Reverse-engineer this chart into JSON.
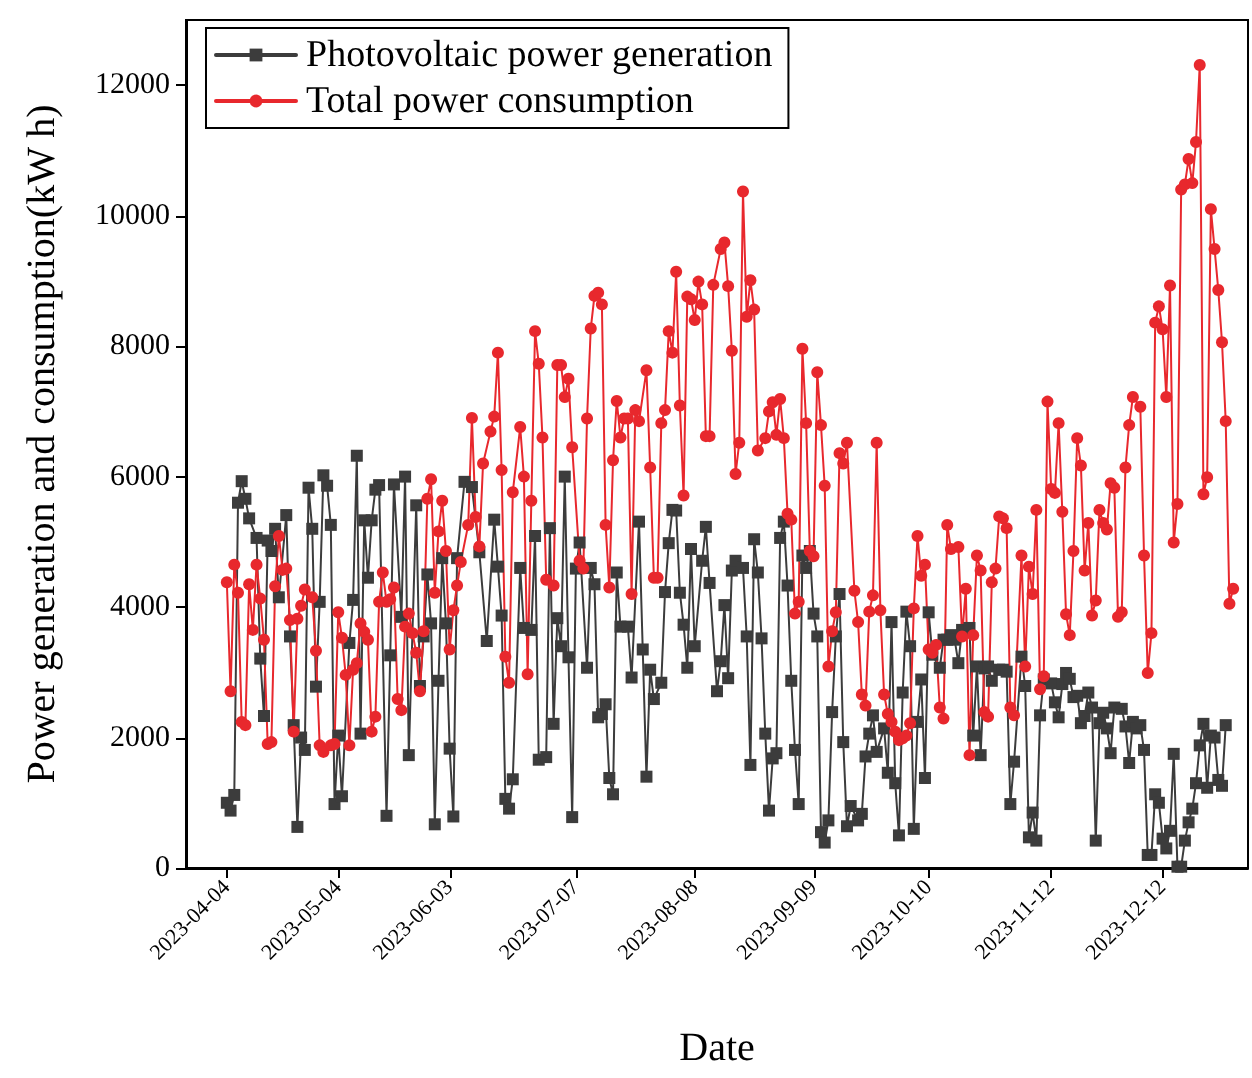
{
  "chart_data": {
    "type": "line",
    "xlabel": "Date",
    "ylabel": "Power generation and consumption(kW h)",
    "legend": "top left",
    "grid": false,
    "xlim": [
      "2023-03-24",
      "2024-01-04"
    ],
    "xticks": [
      "2023-04-04",
      "2023-05-04",
      "2023-06-03",
      "2023-07-07",
      "2023-08-08",
      "2023-09-09",
      "2023-10-10",
      "2023-11-12",
      "2023-12-12"
    ],
    "ylim": [
      0,
      13000
    ],
    "yticks": [
      0,
      2000,
      4000,
      6000,
      8000,
      10000,
      12000
    ],
    "series": [
      {
        "name": "Photovoltaic power generation",
        "color": "#3c3c3c",
        "marker": "square",
        "x": [
          "2023-04-04",
          "2023-04-05",
          "2023-04-06",
          "2023-04-07",
          "2023-04-08",
          "2023-04-09",
          "2023-04-10",
          "2023-04-12",
          "2023-04-13",
          "2023-04-14",
          "2023-04-15",
          "2023-04-16",
          "2023-04-17",
          "2023-04-18",
          "2023-04-20",
          "2023-04-21",
          "2023-04-22",
          "2023-04-23",
          "2023-04-24",
          "2023-04-25",
          "2023-04-26",
          "2023-04-27",
          "2023-04-28",
          "2023-04-29",
          "2023-04-30",
          "2023-05-01",
          "2023-05-02",
          "2023-05-03",
          "2023-05-04",
          "2023-05-05",
          "2023-05-07",
          "2023-05-08",
          "2023-05-09",
          "2023-05-10",
          "2023-05-11",
          "2023-05-12",
          "2023-05-13",
          "2023-05-14",
          "2023-05-15",
          "2023-05-17",
          "2023-05-18",
          "2023-05-19",
          "2023-05-21",
          "2023-05-22",
          "2023-05-23",
          "2023-05-25",
          "2023-05-26",
          "2023-05-27",
          "2023-05-28",
          "2023-05-29",
          "2023-05-30",
          "2023-05-31",
          "2023-06-01",
          "2023-06-02",
          "2023-06-03",
          "2023-06-04",
          "2023-06-05",
          "2023-06-07",
          "2023-06-09",
          "2023-06-11",
          "2023-06-13",
          "2023-06-15",
          "2023-06-16",
          "2023-06-17",
          "2023-06-18",
          "2023-06-19",
          "2023-06-20",
          "2023-06-22",
          "2023-06-23",
          "2023-06-25",
          "2023-06-26",
          "2023-06-27",
          "2023-06-29",
          "2023-06-30",
          "2023-07-01",
          "2023-07-02",
          "2023-07-03",
          "2023-07-04",
          "2023-07-05",
          "2023-07-06",
          "2023-07-07",
          "2023-07-08",
          "2023-07-10",
          "2023-07-11",
          "2023-07-12",
          "2023-07-13",
          "2023-07-14",
          "2023-07-15",
          "2023-07-16",
          "2023-07-17",
          "2023-07-18",
          "2023-07-19",
          "2023-07-21",
          "2023-07-22",
          "2023-07-24",
          "2023-07-25",
          "2023-07-26",
          "2023-07-27",
          "2023-07-28",
          "2023-07-30",
          "2023-07-31",
          "2023-08-01",
          "2023-08-02",
          "2023-08-03",
          "2023-08-04",
          "2023-08-05",
          "2023-08-06",
          "2023-08-07",
          "2023-08-08",
          "2023-08-10",
          "2023-08-11",
          "2023-08-12",
          "2023-08-14",
          "2023-08-15",
          "2023-08-16",
          "2023-08-17",
          "2023-08-18",
          "2023-08-19",
          "2023-08-21",
          "2023-08-22",
          "2023-08-23",
          "2023-08-24",
          "2023-08-25",
          "2023-08-26",
          "2023-08-27",
          "2023-08-28",
          "2023-08-29",
          "2023-08-30",
          "2023-08-31",
          "2023-09-01",
          "2023-09-02",
          "2023-09-03",
          "2023-09-04",
          "2023-09-05",
          "2023-09-06",
          "2023-09-07",
          "2023-09-08",
          "2023-09-09",
          "2023-09-10",
          "2023-09-11",
          "2023-09-12",
          "2023-09-13",
          "2023-09-14",
          "2023-09-15",
          "2023-09-16",
          "2023-09-17",
          "2023-09-18",
          "2023-09-19",
          "2023-09-21",
          "2023-09-22",
          "2023-09-23",
          "2023-09-24",
          "2023-09-25",
          "2023-09-26",
          "2023-09-28",
          "2023-09-29",
          "2023-09-30",
          "2023-10-01",
          "2023-10-02",
          "2023-10-03",
          "2023-10-04",
          "2023-10-05",
          "2023-10-06",
          "2023-10-07",
          "2023-10-08",
          "2023-10-09",
          "2023-10-10",
          "2023-10-11",
          "2023-10-13",
          "2023-10-14",
          "2023-10-15",
          "2023-10-16",
          "2023-10-17",
          "2023-10-18",
          "2023-10-19",
          "2023-10-21",
          "2023-10-22",
          "2023-10-23",
          "2023-10-24",
          "2023-10-25",
          "2023-10-26",
          "2023-10-27",
          "2023-10-29",
          "2023-10-30",
          "2023-10-31",
          "2023-11-01",
          "2023-11-02",
          "2023-11-04",
          "2023-11-05",
          "2023-11-06",
          "2023-11-07",
          "2023-11-08",
          "2023-11-09",
          "2023-11-10",
          "2023-11-12",
          "2023-11-13",
          "2023-11-14",
          "2023-11-15",
          "2023-11-16",
          "2023-11-17",
          "2023-11-18",
          "2023-11-19",
          "2023-11-20",
          "2023-11-21",
          "2023-11-22",
          "2023-11-23",
          "2023-11-24",
          "2023-11-25",
          "2023-11-26",
          "2023-11-27",
          "2023-11-28",
          "2023-11-29",
          "2023-12-01",
          "2023-12-02",
          "2023-12-03",
          "2023-12-04",
          "2023-12-05",
          "2023-12-06",
          "2023-12-07",
          "2023-12-08",
          "2023-12-09",
          "2023-12-10",
          "2023-12-11",
          "2023-12-12",
          "2023-12-13",
          "2023-12-14",
          "2023-12-15",
          "2023-12-16",
          "2023-12-17",
          "2023-12-18",
          "2023-12-19",
          "2023-12-20",
          "2023-12-21",
          "2023-12-22",
          "2023-12-23",
          "2023-12-24",
          "2023-12-25",
          "2023-12-26",
          "2023-12-27",
          "2023-12-28",
          "2023-12-29"
        ],
        "values": [
          1000,
          880,
          1120,
          5600,
          5930,
          5660,
          5360,
          5060,
          3210,
          2330,
          5020,
          4860,
          5200,
          4150,
          5410,
          3550,
          2190,
          630,
          2000,
          1810,
          5830,
          5200,
          2780,
          4080,
          6020,
          5860,
          5260,
          980,
          2030,
          1100,
          3450,
          4110,
          6320,
          2060,
          5330,
          4450,
          5330,
          5800,
          5870,
          800,
          3260,
          5880,
          3850,
          6000,
          1730,
          5560,
          2790,
          3550,
          4500,
          3750,
          670,
          2870,
          4750,
          3750,
          1830,
          790,
          4750,
          5920,
          5840,
          4840,
          3480,
          5340,
          4620,
          3870,
          1060,
          910,
          1360,
          4600,
          3680,
          3650,
          5090,
          1660,
          1700,
          5210,
          2210,
          3830,
          3400,
          6000,
          3230,
          780,
          4590,
          4990,
          3070,
          4600,
          4350,
          2310,
          2360,
          2510,
          1380,
          1130,
          4530,
          3700,
          3700,
          2920,
          5310,
          3350,
          1400,
          3040,
          2590,
          2840,
          4230,
          4980,
          5490,
          5480,
          4220,
          3730,
          3070,
          4890,
          3400,
          4710,
          5230,
          4370,
          2710,
          3170,
          4030,
          2910,
          4560,
          4710,
          4600,
          3550,
          1580,
          5040,
          4530,
          3520,
          2060,
          880,
          1680,
          1760,
          5060,
          5310,
          4330,
          2870,
          1810,
          980,
          4790,
          4600,
          4860,
          3900,
          3550,
          550,
          390,
          730,
          2390,
          3550,
          4200,
          1930,
          640,
          950,
          730,
          830,
          1710,
          2060,
          2340,
          1780,
          2140,
          1460,
          3770,
          1300,
          500,
          2690,
          3930,
          3400,
          600,
          2240,
          2890,
          1380,
          3920,
          3270,
          3070,
          3500,
          3500,
          3570,
          3500,
          3140,
          3650,
          3680,
          2030,
          3090,
          1730,
          3060,
          3090,
          2870,
          3040,
          3040,
          3010,
          980,
          1630,
          3240,
          2790,
          470,
          850,
          420,
          2340,
          2890,
          2830,
          2540,
          2310,
          2820,
          2990,
          2900,
          2620,
          2640,
          2220,
          2330,
          2690,
          2460,
          420,
          2220,
          2380,
          2140,
          1760,
          2460,
          2440,
          2170,
          1610,
          2240,
          2140,
          2190,
          1810,
          200,
          200,
          1130,
          1000,
          450,
          300,
          570,
          1750,
          20,
          20,
          420,
          700,
          910,
          1300,
          1880,
          2210,
          1230,
          2030,
          2000,
          1350,
          1260,
          2190
        ]
      },
      {
        "name": "Total power consumption",
        "color": "#e8282d",
        "marker": "circle",
        "x": [
          "2023-04-04",
          "2023-04-05",
          "2023-04-06",
          "2023-04-07",
          "2023-04-08",
          "2023-04-09",
          "2023-04-10",
          "2023-04-11",
          "2023-04-12",
          "2023-04-13",
          "2023-04-14",
          "2023-04-15",
          "2023-04-16",
          "2023-04-17",
          "2023-04-18",
          "2023-04-19",
          "2023-04-20",
          "2023-04-21",
          "2023-04-22",
          "2023-04-23",
          "2023-04-24",
          "2023-04-25",
          "2023-04-27",
          "2023-04-28",
          "2023-04-29",
          "2023-04-30",
          "2023-05-02",
          "2023-05-03",
          "2023-05-04",
          "2023-05-05",
          "2023-05-06",
          "2023-05-07",
          "2023-05-08",
          "2023-05-09",
          "2023-05-10",
          "2023-05-11",
          "2023-05-12",
          "2023-05-13",
          "2023-05-14",
          "2023-05-15",
          "2023-05-16",
          "2023-05-17",
          "2023-05-18",
          "2023-05-19",
          "2023-05-20",
          "2023-05-21",
          "2023-05-22",
          "2023-05-23",
          "2023-05-24",
          "2023-05-25",
          "2023-05-26",
          "2023-05-27",
          "2023-05-28",
          "2023-05-29",
          "2023-05-30",
          "2023-05-31",
          "2023-06-01",
          "2023-06-02",
          "2023-06-03",
          "2023-06-04",
          "2023-06-05",
          "2023-06-06",
          "2023-06-08",
          "2023-06-09",
          "2023-06-10",
          "2023-06-11",
          "2023-06-12",
          "2023-06-14",
          "2023-06-15",
          "2023-06-16",
          "2023-06-17",
          "2023-06-18",
          "2023-06-19",
          "2023-06-20",
          "2023-06-22",
          "2023-06-23",
          "2023-06-24",
          "2023-06-25",
          "2023-06-26",
          "2023-06-27",
          "2023-06-28",
          "2023-06-29",
          "2023-07-01",
          "2023-07-02",
          "2023-07-03",
          "2023-07-04",
          "2023-07-05",
          "2023-07-06",
          "2023-07-08",
          "2023-07-09",
          "2023-07-10",
          "2023-07-11",
          "2023-07-12",
          "2023-07-13",
          "2023-07-14",
          "2023-07-15",
          "2023-07-16",
          "2023-07-17",
          "2023-07-18",
          "2023-07-19",
          "2023-07-20",
          "2023-07-21",
          "2023-07-22",
          "2023-07-23",
          "2023-07-24",
          "2023-07-26",
          "2023-07-27",
          "2023-07-28",
          "2023-07-29",
          "2023-07-30",
          "2023-07-31",
          "2023-08-01",
          "2023-08-02",
          "2023-08-03",
          "2023-08-04",
          "2023-08-05",
          "2023-08-06",
          "2023-08-07",
          "2023-08-08",
          "2023-08-09",
          "2023-08-10",
          "2023-08-11",
          "2023-08-12",
          "2023-08-13",
          "2023-08-15",
          "2023-08-16",
          "2023-08-17",
          "2023-08-18",
          "2023-08-19",
          "2023-08-20",
          "2023-08-21",
          "2023-08-22",
          "2023-08-23",
          "2023-08-24",
          "2023-08-25",
          "2023-08-27",
          "2023-08-28",
          "2023-08-29",
          "2023-08-30",
          "2023-08-31",
          "2023-09-01",
          "2023-09-02",
          "2023-09-03",
          "2023-09-04",
          "2023-09-05",
          "2023-09-06",
          "2023-09-07",
          "2023-09-08",
          "2023-09-09",
          "2023-09-10",
          "2023-09-11",
          "2023-09-12",
          "2023-09-13",
          "2023-09-14",
          "2023-09-15",
          "2023-09-16",
          "2023-09-17",
          "2023-09-18",
          "2023-09-20",
          "2023-09-21",
          "2023-09-22",
          "2023-09-23",
          "2023-09-24",
          "2023-09-25",
          "2023-09-26",
          "2023-09-27",
          "2023-09-28",
          "2023-09-29",
          "2023-09-30",
          "2023-10-01",
          "2023-10-02",
          "2023-10-03",
          "2023-10-04",
          "2023-10-05",
          "2023-10-06",
          "2023-10-07",
          "2023-10-08",
          "2023-10-09",
          "2023-10-10",
          "2023-10-11",
          "2023-10-12",
          "2023-10-13",
          "2023-10-14",
          "2023-10-15",
          "2023-10-16",
          "2023-10-18",
          "2023-10-19",
          "2023-10-20",
          "2023-10-21",
          "2023-10-22",
          "2023-10-23",
          "2023-10-24",
          "2023-10-25",
          "2023-10-26",
          "2023-10-27",
          "2023-10-28",
          "2023-10-29",
          "2023-10-30",
          "2023-10-31",
          "2023-11-01",
          "2023-11-02",
          "2023-11-04",
          "2023-11-05",
          "2023-11-06",
          "2023-11-07",
          "2023-11-08",
          "2023-11-09",
          "2023-11-10",
          "2023-11-11",
          "2023-11-12",
          "2023-11-13",
          "2023-11-14",
          "2023-11-15",
          "2023-11-16",
          "2023-11-17",
          "2023-11-18",
          "2023-11-19",
          "2023-11-20",
          "2023-11-21",
          "2023-11-22",
          "2023-11-23",
          "2023-11-24",
          "2023-11-25",
          "2023-11-26",
          "2023-11-27",
          "2023-11-28",
          "2023-11-29",
          "2023-11-30",
          "2023-12-01",
          "2023-12-02",
          "2023-12-03",
          "2023-12-04",
          "2023-12-06",
          "2023-12-07",
          "2023-12-08",
          "2023-12-09",
          "2023-12-10",
          "2023-12-11",
          "2023-12-12",
          "2023-12-13",
          "2023-12-14",
          "2023-12-15",
          "2023-12-16",
          "2023-12-17",
          "2023-12-18",
          "2023-12-19",
          "2023-12-20",
          "2023-12-21",
          "2023-12-22",
          "2023-12-23",
          "2023-12-24",
          "2023-12-25",
          "2023-12-26",
          "2023-12-27",
          "2023-12-28",
          "2023-12-29",
          "2023-12-30",
          "2023-12-31"
        ],
        "values": [
          4380,
          2710,
          4650,
          4220,
          2240,
          2190,
          4350,
          3650,
          4650,
          4130,
          3500,
          1900,
          1930,
          4320,
          5090,
          4570,
          4590,
          3800,
          2090,
          3820,
          4020,
          4270,
          4150,
          3330,
          1880,
          1780,
          1880,
          1900,
          3920,
          3530,
          2960,
          1880,
          3040,
          3140,
          3750,
          3620,
          3500,
          2090,
          2320,
          4080,
          4530,
          4080,
          4120,
          4300,
          2590,
          2420,
          3700,
          3900,
          3600,
          3300,
          2710,
          3630,
          5660,
          5960,
          4220,
          5160,
          5630,
          4860,
          3350,
          3950,
          4330,
          4690,
          5260,
          6900,
          5380,
          4930,
          6200,
          6690,
          6920,
          7900,
          6100,
          3240,
          2840,
          5760,
          6760,
          6000,
          2970,
          5630,
          8230,
          7730,
          6600,
          4420,
          4330,
          7710,
          7710,
          7220,
          7500,
          6450,
          4710,
          4590,
          6890,
          8270,
          8770,
          8820,
          8640,
          5260,
          4300,
          6250,
          7160,
          6600,
          6890,
          6890,
          4200,
          7020,
          6850,
          7630,
          6140,
          4450,
          4450,
          6820,
          7020,
          8230,
          7900,
          9140,
          7090,
          5710,
          8760,
          8720,
          8400,
          8990,
          8640,
          6620,
          6620,
          8940,
          9490,
          9590,
          8920,
          7930,
          6040,
          6520,
          10370,
          8450,
          9010,
          8560,
          6400,
          6590,
          7000,
          7140,
          6640,
          7190,
          6590,
          5430,
          5340,
          3900,
          4080,
          7960,
          6820,
          4860,
          4780,
          7600,
          6790,
          5860,
          3090,
          3630,
          3920,
          6360,
          6200,
          6520,
          4250,
          3770,
          2660,
          2490,
          3930,
          4180,
          6520,
          3950,
          2660,
          2360,
          2240,
          2090,
          1960,
          1990,
          2030,
          2220,
          3980,
          5090,
          4480,
          4650,
          3350,
          3300,
          3420,
          2460,
          2290,
          5260,
          4890,
          4920,
          3550,
          4280,
          1730,
          3570,
          4790,
          4560,
          2390,
          2320,
          4380,
          4590,
          5390,
          5360,
          5210,
          2460,
          2340,
          4790,
          3090,
          4620,
          4200,
          5490,
          2740,
          2940,
          7150,
          5810,
          5750,
          6820,
          5460,
          3890,
          3570,
          4860,
          6590,
          6170,
          4560,
          5290,
          3870,
          4100,
          5490,
          5290,
          5190,
          5900,
          5830,
          3850,
          3920,
          6140,
          6790,
          7220,
          7070,
          4790,
          2990,
          3600,
          8360,
          8610,
          8260,
          7220,
          8930,
          4990,
          5580,
          10400,
          10480,
          10870,
          10500,
          11130,
          12310,
          5730,
          5990,
          10100,
          9490,
          8860,
          8060,
          6850,
          4050,
          4280
        ]
      }
    ]
  }
}
